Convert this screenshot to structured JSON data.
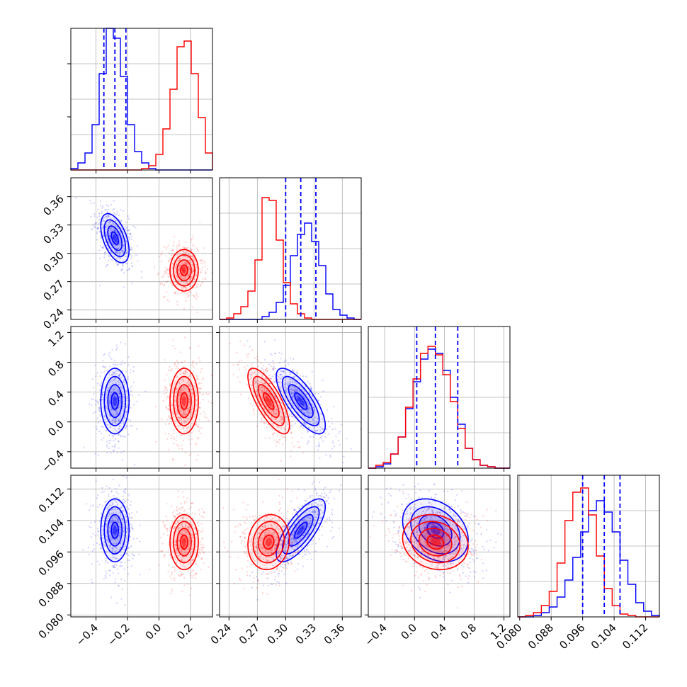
{
  "chart_data": {
    "type": "corner",
    "figure_title": "",
    "parameter_labels": [
      "",
      "",
      "",
      ""
    ],
    "grid": true,
    "legend": "none",
    "colors": {
      "series_a": "#0000ff",
      "series_b": "#ff0000",
      "frame": "#000000",
      "grid": "#b0b0b0"
    },
    "series": [
      {
        "name": "",
        "color": "#0000ff",
        "means": [
          -0.28,
          0.316,
          0.28,
          0.1015
        ],
        "stds": [
          0.045,
          0.013,
          0.22,
          0.004
        ],
        "correlations": {
          "0-1": -0.5,
          "0-2": 0.0,
          "0-3": 0.0,
          "1-2": -0.75,
          "1-3": 0.75,
          "2-3": -0.3
        },
        "quantile_lines": [
          [
            -0.35,
            -0.28,
            -0.21
          ],
          [
            0.3,
            0.316,
            0.332
          ],
          [
            0.03,
            0.28,
            0.58
          ],
          [
            0.096,
            0.1015,
            0.1055
          ]
        ]
      },
      {
        "name": "",
        "color": "#ff0000",
        "means": [
          0.16,
          0.282,
          0.28,
          0.0985
        ],
        "stds": [
          0.045,
          0.011,
          0.22,
          0.0035
        ],
        "correlations": {
          "0-1": 0.0,
          "0-2": 0.0,
          "0-3": 0.0,
          "1-2": -0.75,
          "1-3": 0.1,
          "2-3": -0.15
        }
      }
    ],
    "histograms": [
      {
        "edges": [
          -0.56,
          -0.515,
          -0.47,
          -0.425,
          -0.38,
          -0.335,
          -0.29,
          -0.245,
          -0.2,
          -0.155,
          -0.11,
          -0.065,
          -0.02,
          0.025,
          0.07,
          0.115,
          0.16,
          0.205,
          0.25,
          0.295,
          0.34
        ],
        "ylim": [
          0,
          1.0
        ],
        "counts_a": [
          0.01,
          0.05,
          0.12,
          0.32,
          0.68,
          1.0,
          0.93,
          0.66,
          0.32,
          0.13,
          0.05,
          0.01,
          0,
          0,
          0,
          0,
          0,
          0,
          0,
          0
        ],
        "counts_b": [
          0,
          0,
          0,
          0,
          0,
          0,
          0,
          0,
          0,
          0,
          0.01,
          0.03,
          0.11,
          0.29,
          0.57,
          0.87,
          0.91,
          0.68,
          0.37,
          0.12
        ]
      },
      {
        "edges": [
          0.23,
          0.2375,
          0.245,
          0.2525,
          0.26,
          0.2675,
          0.275,
          0.2825,
          0.29,
          0.2975,
          0.305,
          0.3125,
          0.32,
          0.3275,
          0.335,
          0.3425,
          0.35,
          0.3575,
          0.365,
          0.3725,
          0.38
        ],
        "ylim": [
          0,
          1.0
        ],
        "counts_a": [
          0,
          0,
          0,
          0,
          0,
          0,
          0.02,
          0.05,
          0.12,
          0.24,
          0.45,
          0.6,
          0.68,
          0.55,
          0.38,
          0.18,
          0.07,
          0.03,
          0.01,
          0
        ],
        "counts_b": [
          0,
          0.01,
          0.04,
          0.09,
          0.2,
          0.42,
          0.86,
          0.84,
          0.56,
          0.26,
          0.11,
          0.04,
          0.01,
          0,
          0,
          0,
          0,
          0,
          0,
          0
        ]
      },
      {
        "edges": [
          -0.62,
          -0.52,
          -0.42,
          -0.32,
          -0.22,
          -0.12,
          -0.02,
          0.08,
          0.18,
          0.28,
          0.38,
          0.48,
          0.58,
          0.68,
          0.78,
          0.88,
          0.98,
          1.08,
          1.18,
          1.28
        ],
        "ylim": [
          0,
          1.0
        ],
        "counts_a": [
          0.0,
          0.01,
          0.03,
          0.1,
          0.22,
          0.42,
          0.61,
          0.77,
          0.84,
          0.81,
          0.69,
          0.5,
          0.31,
          0.14,
          0.06,
          0.02,
          0.01,
          0.0,
          0.0
        ],
        "counts_b": [
          0.0,
          0.02,
          0.04,
          0.1,
          0.22,
          0.43,
          0.63,
          0.81,
          0.86,
          0.8,
          0.66,
          0.47,
          0.28,
          0.14,
          0.06,
          0.02,
          0.01,
          0.0,
          0.0
        ]
      },
      {
        "edges": [
          0.0795,
          0.0815,
          0.0835,
          0.0855,
          0.0875,
          0.0895,
          0.0915,
          0.0935,
          0.0955,
          0.0975,
          0.0995,
          0.1015,
          0.1035,
          0.1055,
          0.1075,
          0.1095,
          0.1115,
          0.1135,
          0.1155
        ],
        "ylim": [
          0,
          1.0
        ],
        "counts_a": [
          0,
          0,
          0.01,
          0.03,
          0.07,
          0.14,
          0.26,
          0.42,
          0.6,
          0.75,
          0.82,
          0.74,
          0.6,
          0.4,
          0.23,
          0.1,
          0.04,
          0.01
        ],
        "counts_b": [
          0,
          0.01,
          0.03,
          0.08,
          0.18,
          0.38,
          0.68,
          0.88,
          0.91,
          0.72,
          0.43,
          0.2,
          0.08,
          0.02,
          0.01,
          0,
          0,
          0
        ]
      }
    ],
    "axes": [
      {
        "range": [
          -0.56,
          0.34
        ],
        "ticks": [
          -0.4,
          -0.2,
          0.0,
          0.2
        ],
        "tick_labels": [
          "−0.4",
          "−0.2",
          "0.0",
          "0.2"
        ]
      },
      {
        "range": [
          0.23,
          0.38
        ],
        "ticks": [
          0.24,
          0.27,
          0.3,
          0.33,
          0.36
        ],
        "tick_labels": [
          "0.24",
          "0.27",
          "0.30",
          "0.33",
          "0.36"
        ]
      },
      {
        "range": [
          -0.62,
          1.28
        ],
        "ticks": [
          -0.4,
          0.0,
          0.4,
          0.8,
          1.2
        ],
        "tick_labels": [
          "−0.4",
          "0.0",
          "0.4",
          "0.8",
          "1.2"
        ]
      },
      {
        "range": [
          0.0795,
          0.1155
        ],
        "ticks": [
          0.08,
          0.088,
          0.096,
          0.104,
          0.112
        ],
        "tick_labels": [
          "0.080",
          "0.088",
          "0.096",
          "0.104",
          "0.112"
        ]
      }
    ],
    "contour_levels": [
      0.5,
      1.0,
      1.5,
      2.0
    ]
  }
}
